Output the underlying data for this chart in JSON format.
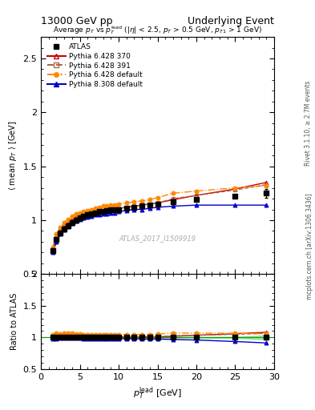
{
  "title_left": "13000 GeV pp",
  "title_right": "Underlying Event",
  "plot_title": "Average p_{T} vs p_{T}^{lead} (|\\eta| < 2.5, p_{T} > 0.5 GeV, p_{T1} > 1 GeV)",
  "xlabel": "p_{T}^{lead} [GeV]",
  "ylabel": "\\langle mean p_{T} \\rangle [GeV]",
  "ylabel_ratio": "Ratio to ATLAS",
  "watermark": "ATLAS_2017_I1509919",
  "right_label1": "Rivet 3.1.10, \\geq 2.7M events",
  "right_label2": "mcplots.cern.ch [arXiv:1306.3436]",
  "ylim_main": [
    0.5,
    2.7
  ],
  "ylim_ratio": [
    0.5,
    2.0
  ],
  "xlim": [
    0,
    30
  ],
  "yticks_main": [
    0.5,
    1.0,
    1.5,
    2.0,
    2.5
  ],
  "yticks_ratio": [
    0.5,
    1.0,
    1.5,
    2.0
  ],
  "xticks": [
    0,
    5,
    10,
    15,
    20,
    25,
    30
  ],
  "atlas_x": [
    1.5,
    2.0,
    2.5,
    3.0,
    3.5,
    4.0,
    4.5,
    5.0,
    5.5,
    6.0,
    6.5,
    7.0,
    7.5,
    8.0,
    8.5,
    9.0,
    9.5,
    10.0,
    11.0,
    12.0,
    13.0,
    14.0,
    15.0,
    17.0,
    20.0,
    25.0,
    29.0
  ],
  "atlas_y": [
    0.72,
    0.82,
    0.88,
    0.92,
    0.95,
    0.98,
    1.0,
    1.02,
    1.04,
    1.05,
    1.06,
    1.07,
    1.08,
    1.08,
    1.09,
    1.1,
    1.1,
    1.1,
    1.11,
    1.12,
    1.13,
    1.14,
    1.15,
    1.17,
    1.19,
    1.22,
    1.25
  ],
  "atlas_yerr": [
    0.02,
    0.015,
    0.012,
    0.01,
    0.009,
    0.008,
    0.007,
    0.007,
    0.007,
    0.007,
    0.007,
    0.007,
    0.007,
    0.007,
    0.007,
    0.007,
    0.007,
    0.007,
    0.007,
    0.008,
    0.008,
    0.009,
    0.009,
    0.01,
    0.01,
    0.012,
    0.04
  ],
  "py6_370_x": [
    1.5,
    2.0,
    2.5,
    3.0,
    3.5,
    4.0,
    4.5,
    5.0,
    5.5,
    6.0,
    6.5,
    7.0,
    7.5,
    8.0,
    8.5,
    9.0,
    9.5,
    10.0,
    11.0,
    12.0,
    13.0,
    14.0,
    15.0,
    17.0,
    20.0,
    25.0,
    29.0
  ],
  "py6_370_y": [
    0.72,
    0.83,
    0.9,
    0.94,
    0.97,
    1.0,
    1.02,
    1.04,
    1.05,
    1.06,
    1.07,
    1.08,
    1.09,
    1.09,
    1.1,
    1.1,
    1.11,
    1.11,
    1.12,
    1.13,
    1.14,
    1.15,
    1.16,
    1.19,
    1.23,
    1.29,
    1.35
  ],
  "py6_391_x": [
    1.5,
    2.0,
    2.5,
    3.0,
    3.5,
    4.0,
    4.5,
    5.0,
    5.5,
    6.0,
    6.5,
    7.0,
    7.5,
    8.0,
    8.5,
    9.0,
    9.5,
    10.0,
    11.0,
    12.0,
    13.0,
    14.0,
    15.0,
    17.0,
    20.0,
    25.0,
    29.0
  ],
  "py6_391_y": [
    0.73,
    0.84,
    0.9,
    0.94,
    0.97,
    1.0,
    1.02,
    1.03,
    1.05,
    1.06,
    1.07,
    1.08,
    1.08,
    1.09,
    1.1,
    1.1,
    1.11,
    1.11,
    1.12,
    1.13,
    1.14,
    1.15,
    1.16,
    1.2,
    1.23,
    1.28,
    1.33
  ],
  "py6_def_x": [
    1.5,
    2.0,
    2.5,
    3.0,
    3.5,
    4.0,
    4.5,
    5.0,
    5.5,
    6.0,
    6.5,
    7.0,
    7.5,
    8.0,
    8.5,
    9.0,
    9.5,
    10.0,
    11.0,
    12.0,
    13.0,
    14.0,
    15.0,
    17.0,
    20.0,
    25.0,
    29.0
  ],
  "py6_def_y": [
    0.75,
    0.87,
    0.93,
    0.98,
    1.01,
    1.04,
    1.06,
    1.07,
    1.08,
    1.09,
    1.1,
    1.11,
    1.12,
    1.13,
    1.13,
    1.14,
    1.14,
    1.15,
    1.16,
    1.17,
    1.18,
    1.19,
    1.21,
    1.25,
    1.27,
    1.3,
    1.32
  ],
  "py8_def_x": [
    1.5,
    2.0,
    2.5,
    3.0,
    3.5,
    4.0,
    4.5,
    5.0,
    5.5,
    6.0,
    6.5,
    7.0,
    7.5,
    8.0,
    8.5,
    9.0,
    9.5,
    10.0,
    11.0,
    12.0,
    13.0,
    14.0,
    15.0,
    17.0,
    20.0,
    25.0,
    29.0
  ],
  "py8_def_y": [
    0.7,
    0.8,
    0.87,
    0.91,
    0.94,
    0.97,
    0.99,
    1.01,
    1.02,
    1.03,
    1.04,
    1.05,
    1.05,
    1.06,
    1.06,
    1.07,
    1.07,
    1.08,
    1.09,
    1.1,
    1.1,
    1.11,
    1.12,
    1.13,
    1.14,
    1.14,
    1.14
  ],
  "color_atlas": "#000000",
  "color_py6_370": "#cc0000",
  "color_py6_391": "#aa6644",
  "color_py6_def": "#ff8800",
  "color_py8_def": "#0000cc",
  "color_ratio_band": "#00aa00",
  "bg_color": "#ffffff"
}
